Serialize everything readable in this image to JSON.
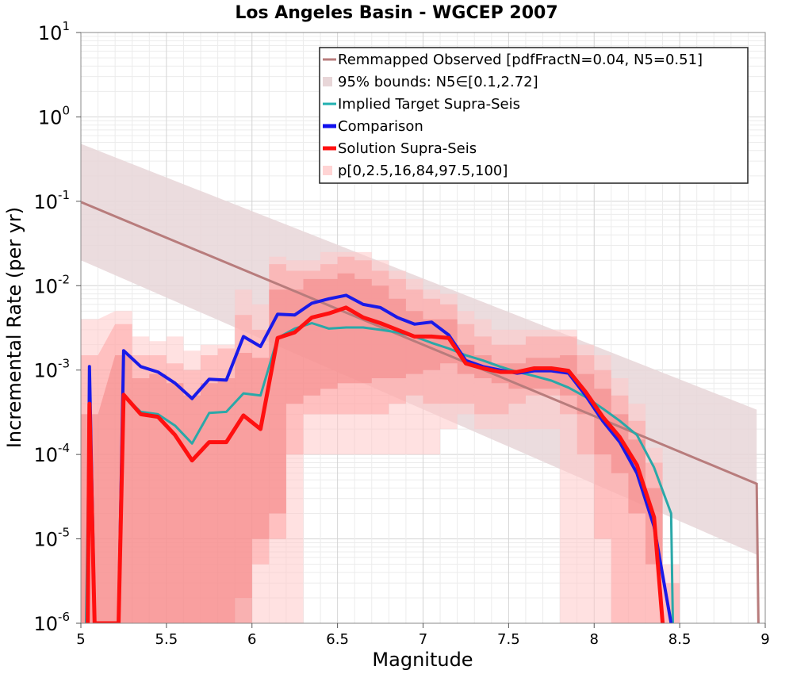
{
  "chart_data": {
    "type": "line",
    "title": "Los Angeles Basin - WGCEP 2007",
    "xlabel": "Magnitude",
    "ylabel": "Incremental Rate (per yr)",
    "xlim": [
      5,
      9
    ],
    "ylim": [
      1e-06,
      10
    ],
    "yscale": "log",
    "x_ticks": [
      5,
      5.5,
      6,
      6.5,
      7,
      7.5,
      8,
      8.5,
      9
    ],
    "x_tick_labels": [
      "5",
      "5.5",
      "6",
      "6.5",
      "7",
      "7.5",
      "8",
      "8.5",
      "9"
    ],
    "y_tick_values": [
      1e-06,
      1e-05,
      0.0001,
      0.001,
      0.01,
      0.1,
      1,
      10
    ],
    "y_tick_mantissa": [
      "10",
      "10",
      "10",
      "10",
      "10",
      "10",
      "10",
      "10"
    ],
    "y_tick_exponents": [
      "-6",
      "-5",
      "-4",
      "-3",
      "-2",
      "-1",
      "0",
      "1"
    ],
    "legend_position": "top-right",
    "legend": [
      {
        "label": "Remmapped Observed [pdfFractN=0.04, N5=0.51]",
        "kind": "line",
        "color": "#b87c7c"
      },
      {
        "label": "95% bounds: N5∈[0.1,2.72]",
        "kind": "box",
        "color": "#e8d6d8"
      },
      {
        "label": "Implied Target Supra-Seis",
        "kind": "line",
        "color": "#20b0b0"
      },
      {
        "label": "Comparison",
        "kind": "line",
        "color": "#1010ee"
      },
      {
        "label": "Solution Supra-Seis",
        "kind": "line",
        "color": "#ff1010"
      },
      {
        "label": "p[0,2.5,16,84,97.5,100]",
        "kind": "box",
        "color": "#ffd4d4"
      }
    ],
    "observed": {
      "name": "Remmapped Observed",
      "x": [
        5.0,
        8.95,
        8.96
      ],
      "y": [
        0.098,
        4.5e-05,
        1e-06
      ]
    },
    "bounds95": {
      "name": "95% bounds",
      "x": [
        5.0,
        8.95
      ],
      "lower": [
        0.02,
        6.5e-06
      ],
      "upper": [
        0.48,
        0.00034
      ]
    },
    "bands": {
      "name": "p[0,2.5,16,84,97.5,100]",
      "x": [
        5.05,
        5.25,
        5.35,
        5.45,
        5.55,
        5.65,
        5.75,
        5.85,
        5.95,
        6.05,
        6.15,
        6.25,
        6.35,
        6.45,
        6.55,
        6.65,
        6.75,
        6.85,
        6.95,
        7.05,
        7.15,
        7.25,
        7.35,
        7.45,
        7.55,
        7.65,
        7.75,
        7.85,
        7.95,
        8.05,
        8.15,
        8.25,
        8.35,
        8.45
      ],
      "p0": [
        1e-07,
        1e-07,
        1e-07,
        1e-07,
        1e-07,
        1e-07,
        1e-07,
        1e-07,
        1e-07,
        1e-07,
        1e-07,
        1e-07,
        0.0001,
        0.0001,
        0.0001,
        0.0001,
        0.0001,
        0.0001,
        0.0001,
        0.0001,
        0.0002,
        0.0003,
        0.0002,
        0.0002,
        0.0002,
        0.0002,
        0.0002,
        1e-07,
        1e-07,
        1e-07,
        1e-07,
        1e-07,
        1e-07,
        1e-07
      ],
      "p2_5": [
        1e-07,
        1e-07,
        1e-07,
        1e-07,
        1e-07,
        1e-07,
        1e-07,
        1e-07,
        2e-06,
        5e-06,
        1e-05,
        0.0001,
        0.0003,
        0.0003,
        0.0003,
        0.0003,
        0.0003,
        0.0004,
        0.0005,
        0.0004,
        0.0004,
        0.0004,
        0.0003,
        0.0003,
        0.0004,
        0.0005,
        0.0005,
        0.0003,
        0.0001,
        1e-05,
        1e-06,
        1e-06,
        1e-07,
        1e-07
      ],
      "p16": [
        1e-07,
        1e-07,
        1e-07,
        1e-07,
        1e-07,
        1e-07,
        1e-07,
        1e-07,
        1e-06,
        1e-05,
        2e-05,
        0.0004,
        0.0005,
        0.0006,
        0.0007,
        0.0007,
        0.0008,
        0.0008,
        0.0009,
        0.001,
        0.0012,
        0.0009,
        0.0008,
        0.0007,
        0.0006,
        0.0006,
        0.0006,
        0.0005,
        0.0003,
        0.0001,
        6e-05,
        2e-05,
        5e-06,
        1e-07
      ],
      "p84": [
        0.0003,
        0.0015,
        0.0008,
        0.0009,
        0.0007,
        0.0005,
        0.0007,
        0.0008,
        0.0016,
        0.0014,
        0.009,
        0.009,
        0.012,
        0.012,
        0.014,
        0.012,
        0.01,
        0.007,
        0.005,
        0.004,
        0.004,
        0.002,
        0.0015,
        0.0012,
        0.0012,
        0.0014,
        0.0014,
        0.0015,
        0.0009,
        0.0006,
        0.0003,
        0.00015,
        4e-05,
        1e-06
      ],
      "p97_5": [
        0.0015,
        0.0035,
        0.0015,
        0.0015,
        0.0012,
        0.001,
        0.0015,
        0.0018,
        0.0045,
        0.003,
        0.018,
        0.015,
        0.015,
        0.018,
        0.022,
        0.02,
        0.015,
        0.012,
        0.009,
        0.007,
        0.006,
        0.0035,
        0.0025,
        0.002,
        0.002,
        0.0025,
        0.0025,
        0.0025,
        0.0015,
        0.001,
        0.0005,
        0.00025,
        8e-05,
        3e-06
      ],
      "p100": [
        0.004,
        0.005,
        0.0025,
        0.0022,
        0.0025,
        0.0017,
        0.002,
        0.002,
        0.009,
        0.006,
        0.022,
        0.02,
        0.02,
        0.025,
        0.025,
        0.025,
        0.02,
        0.015,
        0.012,
        0.009,
        0.008,
        0.005,
        0.004,
        0.003,
        0.003,
        0.003,
        0.003,
        0.003,
        0.002,
        0.0015,
        0.0008,
        0.0004,
        0.00012,
        5e-06
      ]
    },
    "series": [
      {
        "name": "Implied Target Supra-Seis",
        "color": "#2aa8a8",
        "width": 3,
        "x": [
          5.03,
          5.05,
          5.08,
          5.22,
          5.25,
          5.35,
          5.45,
          5.55,
          5.65,
          5.75,
          5.85,
          5.95,
          6.05,
          6.15,
          6.25,
          6.35,
          6.45,
          6.55,
          6.65,
          6.75,
          6.85,
          6.95,
          7.05,
          7.15,
          7.25,
          7.35,
          7.45,
          7.55,
          7.65,
          7.75,
          7.85,
          7.95,
          8.05,
          8.15,
          8.25,
          8.35,
          8.45,
          8.46
        ],
        "y": [
          1e-06,
          0.0004,
          1e-06,
          1e-06,
          0.0005,
          0.00032,
          0.0003,
          0.00022,
          0.000135,
          0.00031,
          0.00032,
          0.00053,
          0.0005,
          0.0024,
          0.0031,
          0.0036,
          0.0031,
          0.0032,
          0.0032,
          0.003,
          0.0028,
          0.0025,
          0.0021,
          0.0018,
          0.0015,
          0.0013,
          0.0011,
          0.00095,
          0.00085,
          0.00075,
          0.00062,
          0.00048,
          0.00035,
          0.00025,
          0.00017,
          7e-05,
          2e-05,
          1e-06
        ]
      },
      {
        "name": "Comparison",
        "color": "#1a1ae8",
        "width": 4,
        "x": [
          5.04,
          5.05,
          5.08,
          5.22,
          5.25,
          5.35,
          5.45,
          5.55,
          5.65,
          5.75,
          5.85,
          5.95,
          6.05,
          6.15,
          6.25,
          6.35,
          6.45,
          6.55,
          6.65,
          6.75,
          6.85,
          6.95,
          7.05,
          7.15,
          7.25,
          7.35,
          7.45,
          7.55,
          7.65,
          7.75,
          7.85,
          7.95,
          8.05,
          8.15,
          8.25,
          8.35,
          8.45
        ],
        "y": [
          1e-06,
          0.0011,
          1e-06,
          1e-06,
          0.0017,
          0.0011,
          0.00095,
          0.0007,
          0.00046,
          0.00078,
          0.00076,
          0.0025,
          0.0019,
          0.0046,
          0.0045,
          0.0062,
          0.007,
          0.0077,
          0.006,
          0.0055,
          0.0042,
          0.0035,
          0.0037,
          0.0026,
          0.0013,
          0.0011,
          0.001,
          0.00092,
          0.00098,
          0.00098,
          0.00092,
          0.0005,
          0.00025,
          0.00014,
          6e-05,
          1.4e-05,
          1e-06
        ]
      },
      {
        "name": "Solution Supra-Seis",
        "color": "#ff1010",
        "width": 5,
        "x": [
          5.04,
          5.05,
          5.08,
          5.22,
          5.25,
          5.35,
          5.45,
          5.55,
          5.65,
          5.75,
          5.85,
          5.95,
          6.05,
          6.15,
          6.25,
          6.35,
          6.45,
          6.55,
          6.65,
          6.75,
          6.85,
          6.95,
          7.05,
          7.15,
          7.25,
          7.35,
          7.45,
          7.55,
          7.65,
          7.75,
          7.85,
          7.95,
          8.05,
          8.15,
          8.25,
          8.35,
          8.4
        ],
        "y": [
          1e-06,
          0.0004,
          1e-06,
          1e-06,
          0.00051,
          0.0003,
          0.00028,
          0.00017,
          8.5e-05,
          0.00014,
          0.00014,
          0.00029,
          0.0002,
          0.0024,
          0.0028,
          0.0042,
          0.0047,
          0.0055,
          0.0042,
          0.0036,
          0.003,
          0.0025,
          0.0025,
          0.0024,
          0.0012,
          0.00105,
          0.00095,
          0.00095,
          0.00105,
          0.00105,
          0.00098,
          0.00055,
          0.00028,
          0.00016,
          7.5e-05,
          1.8e-05,
          1e-06
        ]
      }
    ]
  }
}
